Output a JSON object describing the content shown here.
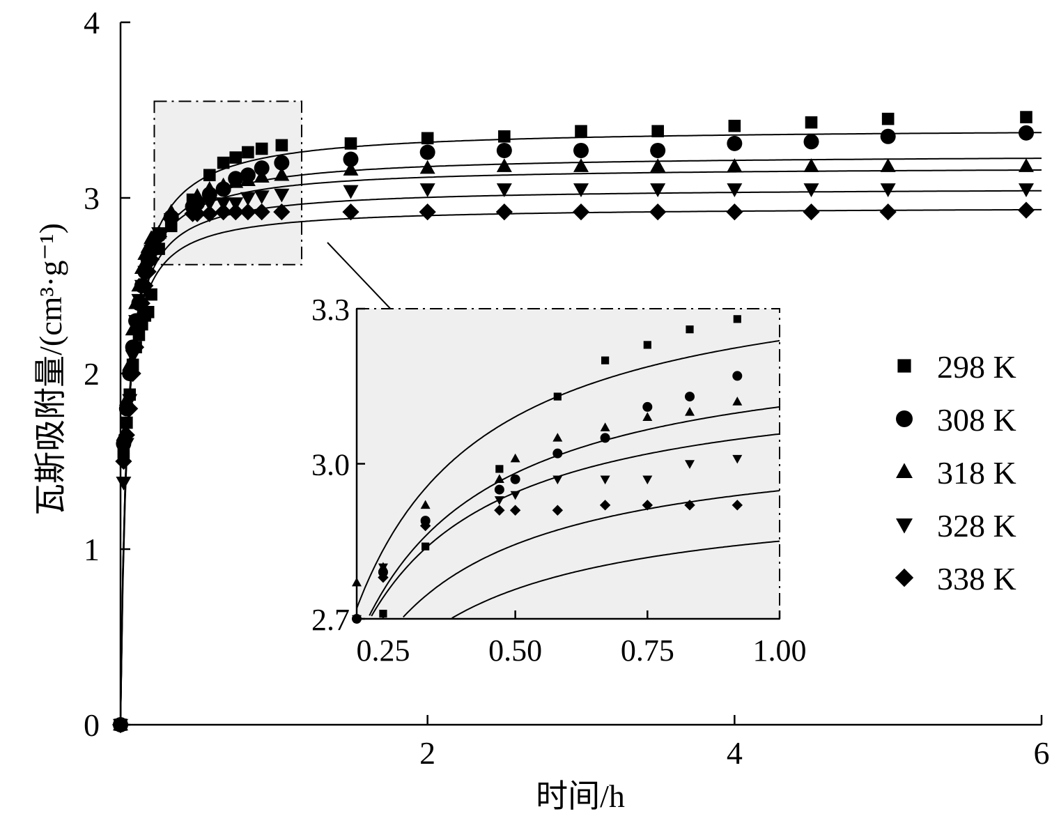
{
  "chart_data": {
    "type": "scatter",
    "xlabel": "时间/h",
    "ylabel": "瓦斯吸附量/(cm³·g⁻¹)",
    "xlim": [
      0,
      6
    ],
    "ylim": [
      0,
      4
    ],
    "x_ticks": [
      "2",
      "4",
      "6"
    ],
    "y_ticks": [
      "0",
      "1",
      "2",
      "3",
      "4"
    ],
    "legend_position": "right",
    "series": [
      {
        "name": "298 K",
        "marker": "square",
        "x": [
          0,
          0.02,
          0.04,
          0.06,
          0.08,
          0.1,
          0.12,
          0.14,
          0.16,
          0.18,
          0.2,
          0.25,
          0.33,
          0.47,
          0.58,
          0.67,
          0.75,
          0.83,
          0.92,
          1.05,
          1.5,
          2.0,
          2.5,
          3.0,
          3.5,
          4.0,
          4.5,
          5.0,
          5.9
        ],
        "y": [
          0,
          1.55,
          1.72,
          1.88,
          2.05,
          2.15,
          2.22,
          2.28,
          2.33,
          2.35,
          2.45,
          2.71,
          2.84,
          2.99,
          3.13,
          3.2,
          3.23,
          3.26,
          3.28,
          3.3,
          3.31,
          3.34,
          3.35,
          3.38,
          3.38,
          3.41,
          3.43,
          3.45,
          3.46
        ],
        "fit": {
          "qe": 3.4,
          "t_half": 0.05
        }
      },
      {
        "name": "308 K",
        "marker": "circle",
        "x": [
          0,
          0.02,
          0.04,
          0.06,
          0.08,
          0.1,
          0.12,
          0.14,
          0.16,
          0.18,
          0.2,
          0.25,
          0.33,
          0.47,
          0.5,
          0.58,
          0.67,
          0.75,
          0.83,
          0.92,
          1.05,
          1.5,
          2.0,
          2.5,
          3.0,
          3.5,
          4.0,
          4.5,
          5.0,
          5.9
        ],
        "y": [
          0,
          1.6,
          1.8,
          2.0,
          2.15,
          2.3,
          2.4,
          2.5,
          2.58,
          2.65,
          2.7,
          2.79,
          2.89,
          2.95,
          2.97,
          3.02,
          3.05,
          3.11,
          3.13,
          3.17,
          3.2,
          3.22,
          3.26,
          3.27,
          3.27,
          3.27,
          3.31,
          3.32,
          3.35,
          3.37
        ],
        "fit": {
          "qe": 3.25,
          "t_half": 0.045
        }
      },
      {
        "name": "318 K",
        "marker": "triangle-up",
        "x": [
          0,
          0.02,
          0.04,
          0.06,
          0.08,
          0.1,
          0.12,
          0.14,
          0.16,
          0.18,
          0.2,
          0.25,
          0.33,
          0.47,
          0.5,
          0.58,
          0.67,
          0.75,
          0.83,
          0.92,
          1.05,
          1.5,
          2.0,
          2.5,
          3.0,
          3.5,
          4.0,
          4.5,
          5.0,
          5.9
        ],
        "y": [
          0,
          1.65,
          1.85,
          2.05,
          2.25,
          2.4,
          2.5,
          2.6,
          2.68,
          2.72,
          2.77,
          2.8,
          2.92,
          2.97,
          3.01,
          3.05,
          3.07,
          3.09,
          3.1,
          3.12,
          3.13,
          3.16,
          3.17,
          3.18,
          3.18,
          3.18,
          3.18,
          3.18,
          3.18,
          3.18
        ],
        "fit": {
          "qe": 3.18,
          "t_half": 0.04
        }
      },
      {
        "name": "328 K",
        "marker": "triangle-down",
        "x": [
          0,
          0.02,
          0.04,
          0.06,
          0.08,
          0.1,
          0.12,
          0.14,
          0.16,
          0.18,
          0.2,
          0.25,
          0.33,
          0.47,
          0.5,
          0.58,
          0.67,
          0.75,
          0.83,
          0.92,
          1.05,
          1.5,
          2.0,
          2.5,
          3.0,
          3.5,
          4.0,
          4.5,
          5.0,
          5.9
        ],
        "y": [
          0,
          1.38,
          1.6,
          1.85,
          2.1,
          2.3,
          2.42,
          2.5,
          2.58,
          2.64,
          2.7,
          2.8,
          2.88,
          2.93,
          2.94,
          2.97,
          2.97,
          2.97,
          3.0,
          3.01,
          3.02,
          3.04,
          3.05,
          3.05,
          3.05,
          3.05,
          3.05,
          3.05,
          3.05,
          3.05
        ],
        "fit": {
          "qe": 3.06,
          "t_half": 0.038
        }
      },
      {
        "name": "338 K",
        "marker": "diamond",
        "x": [
          0,
          0.02,
          0.04,
          0.06,
          0.08,
          0.1,
          0.12,
          0.14,
          0.16,
          0.18,
          0.2,
          0.25,
          0.33,
          0.47,
          0.5,
          0.58,
          0.67,
          0.75,
          0.83,
          0.92,
          1.05,
          1.5,
          2.0,
          2.5,
          3.0,
          3.5,
          4.0,
          4.5,
          5.0,
          5.9
        ],
        "y": [
          0,
          1.5,
          1.65,
          1.8,
          2.0,
          2.15,
          2.3,
          2.4,
          2.5,
          2.58,
          2.65,
          2.78,
          2.88,
          2.91,
          2.91,
          2.91,
          2.92,
          2.92,
          2.92,
          2.92,
          2.92,
          2.92,
          2.92,
          2.92,
          2.92,
          2.92,
          2.92,
          2.92,
          2.92,
          2.93
        ],
        "fit": {
          "qe": 2.95,
          "t_half": 0.035
        }
      }
    ],
    "zoom_region": {
      "xlim": [
        0.22,
        1.18
      ],
      "ylim": [
        2.62,
        3.55
      ]
    },
    "inset": {
      "xlim": [
        0.2,
        1.0
      ],
      "ylim": [
        2.7,
        3.3
      ],
      "x_ticks": [
        "0.25",
        "0.50",
        "0.75",
        "1.00"
      ],
      "y_ticks": [
        "2.7",
        "3.0",
        "3.3"
      ]
    }
  }
}
